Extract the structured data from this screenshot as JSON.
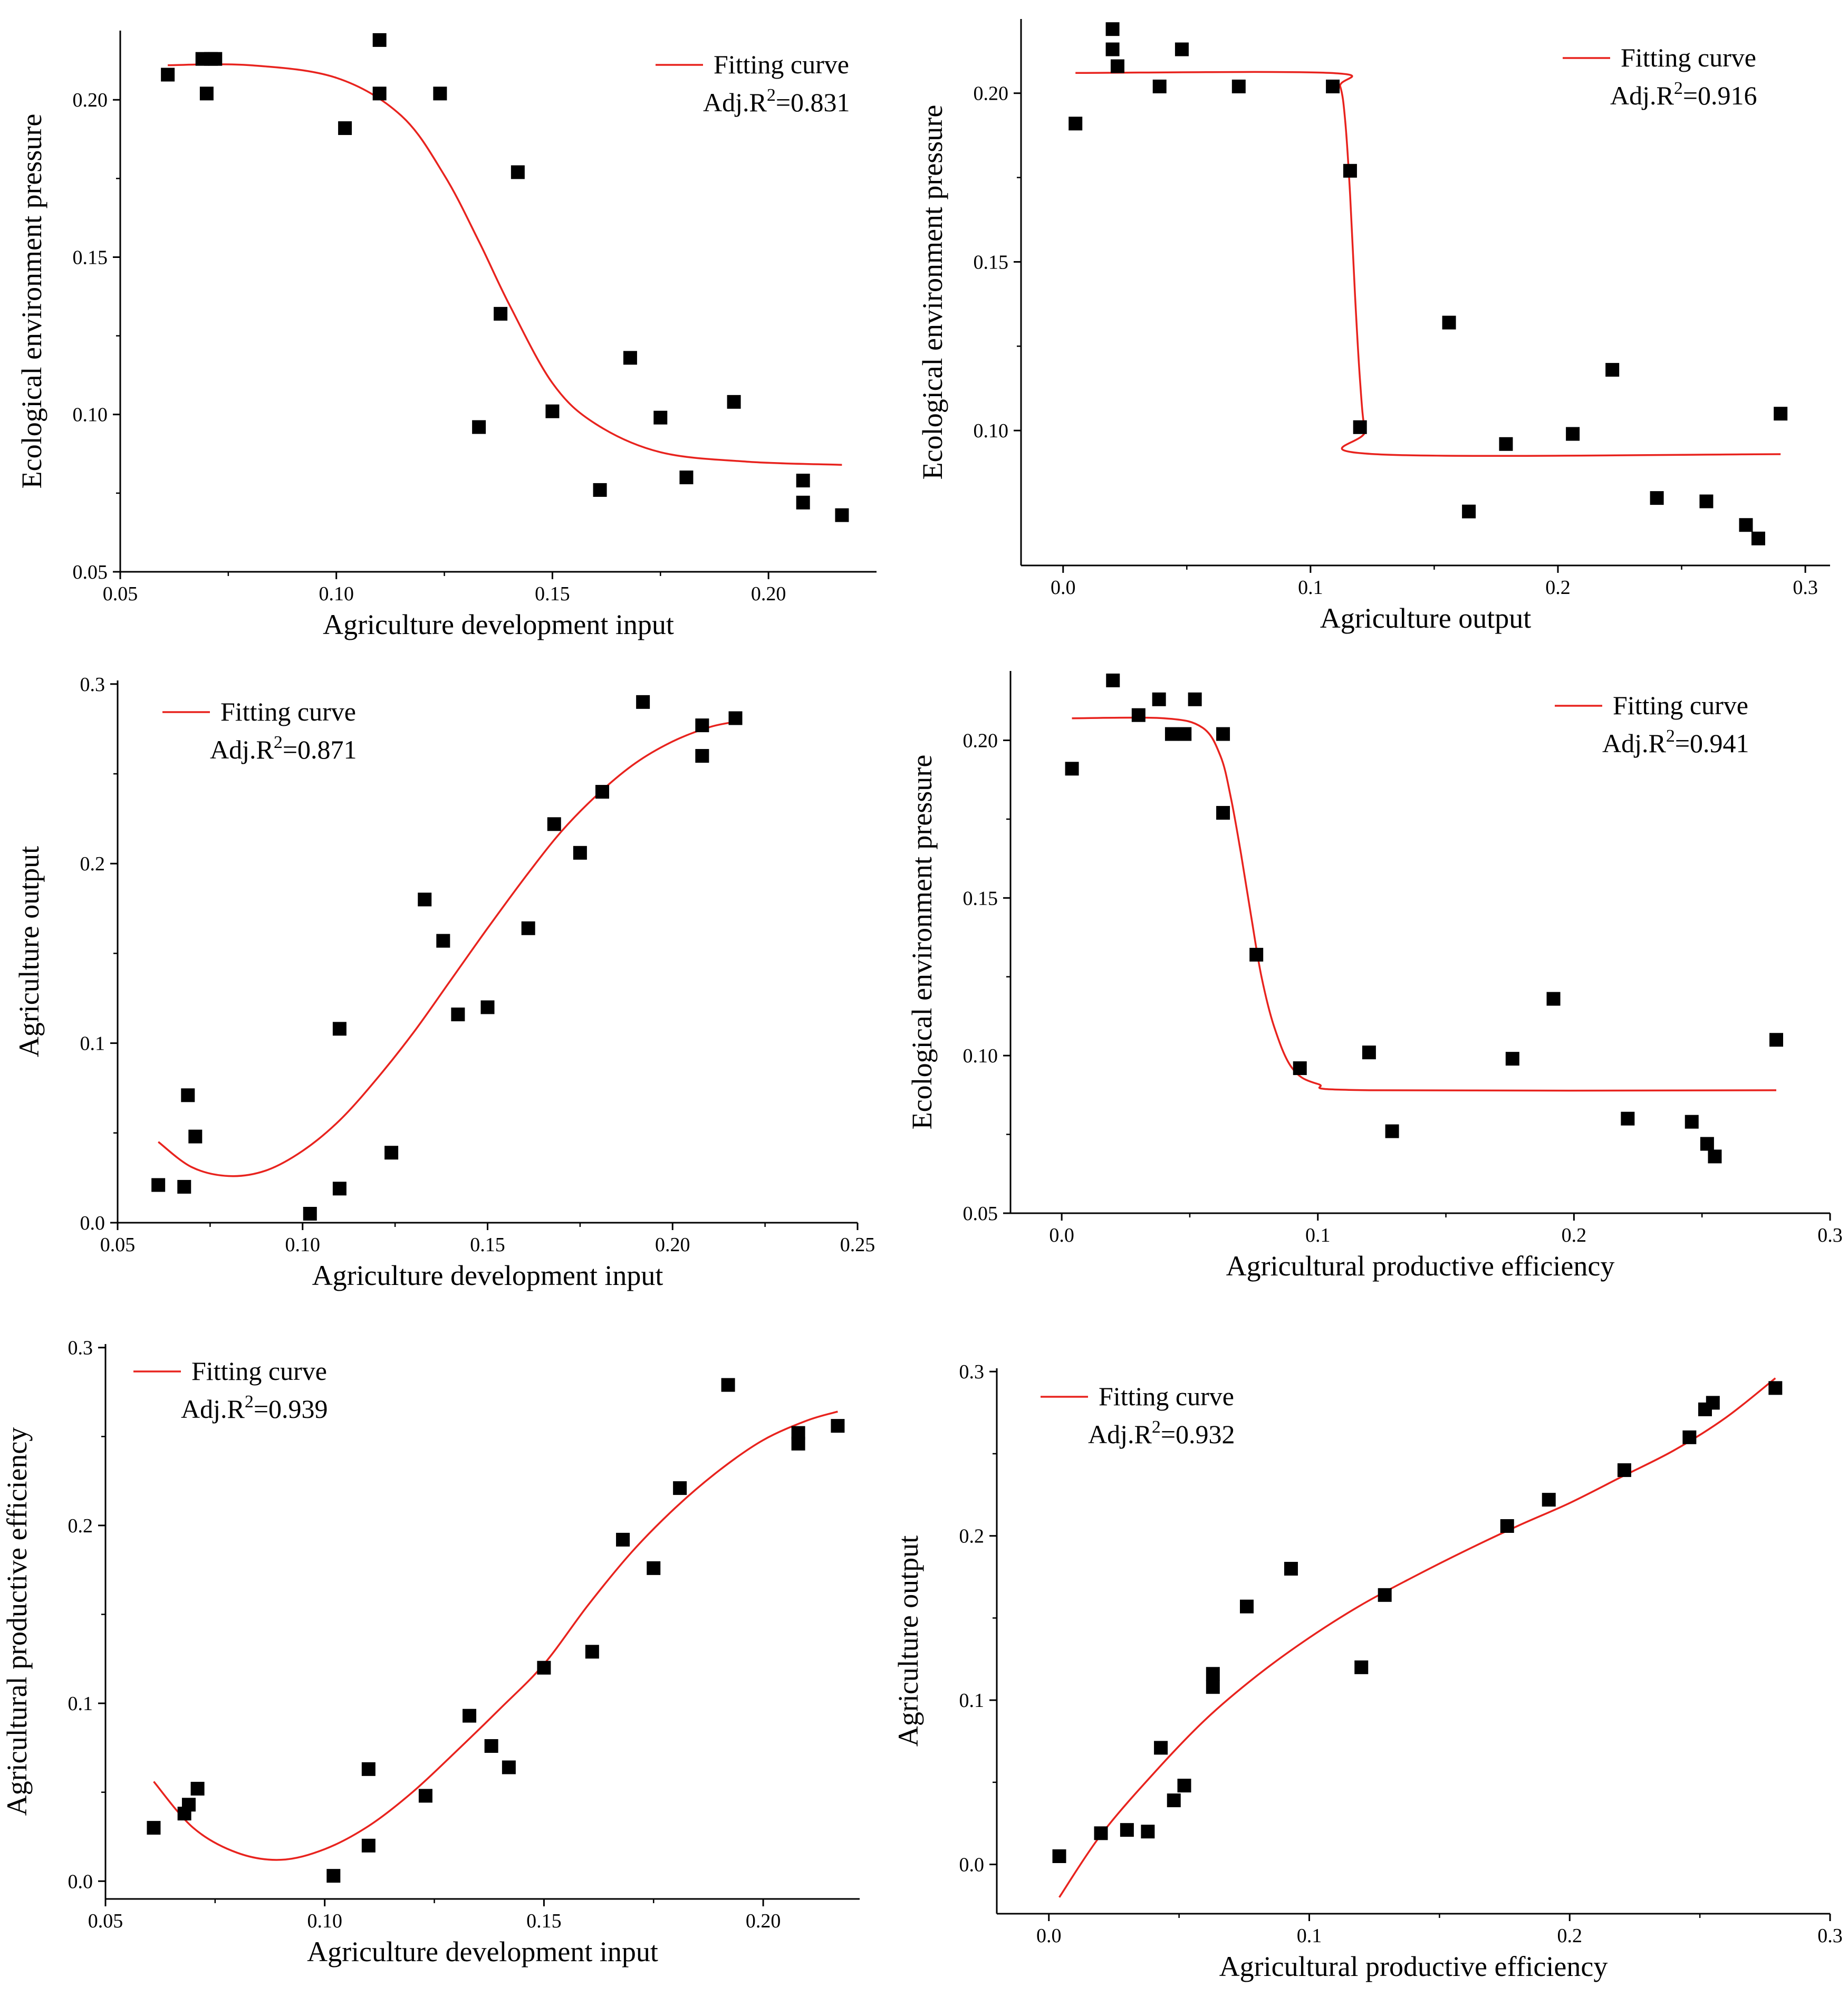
{
  "chart_data": [
    {
      "type": "scatter",
      "panel": "top-left",
      "xlabel": "Agriculture development input",
      "ylabel": "Ecological environment pressure",
      "xlim": [
        0.05,
        0.225
      ],
      "ylim": [
        0.05,
        0.222
      ],
      "xticks": [
        0.05,
        0.1,
        0.15,
        0.2
      ],
      "yticks": [
        0.05,
        0.1,
        0.15,
        0.2
      ],
      "xtick_labels": [
        "0.05",
        "0.10",
        "0.15",
        "0.20"
      ],
      "ytick_labels": [
        "0.05",
        "0.10",
        "0.15",
        "0.20"
      ],
      "legend": {
        "label": "Fitting curve",
        "r2_prefix": "Adj.R",
        "r2_sup": "2",
        "r2_value": "=0.831",
        "position": "top-right"
      },
      "series": [
        {
          "name": "points",
          "x": [
            0.061,
            0.069,
            0.07,
            0.071,
            0.072,
            0.102,
            0.11,
            0.11,
            0.124,
            0.133,
            0.138,
            0.142,
            0.15,
            0.161,
            0.168,
            0.175,
            0.181,
            0.192,
            0.208,
            0.208,
            0.217
          ],
          "y": [
            0.208,
            0.213,
            0.202,
            0.213,
            0.213,
            0.191,
            0.219,
            0.202,
            0.202,
            0.096,
            0.132,
            0.177,
            0.101,
            0.076,
            0.118,
            0.099,
            0.08,
            0.104,
            0.079,
            0.072,
            0.068
          ]
        },
        {
          "name": "Fitting curve",
          "x": [
            0.061,
            0.08,
            0.1,
            0.115,
            0.125,
            0.133,
            0.14,
            0.15,
            0.16,
            0.175,
            0.195,
            0.217
          ],
          "y": [
            0.211,
            0.211,
            0.207,
            0.195,
            0.176,
            0.155,
            0.135,
            0.11,
            0.097,
            0.088,
            0.085,
            0.084
          ]
        }
      ]
    },
    {
      "type": "scatter",
      "panel": "top-right",
      "xlabel": "Agriculture output",
      "ylabel": "Ecological environment pressure",
      "xlim": [
        -0.017,
        0.31
      ],
      "ylim": [
        0.06,
        0.222
      ],
      "xticks": [
        0.0,
        0.1,
        0.2,
        0.3
      ],
      "yticks": [
        0.1,
        0.15,
        0.2
      ],
      "xtick_labels": [
        "0.0",
        "0.1",
        "0.2",
        "0.3"
      ],
      "ytick_labels": [
        "0.10",
        "0.15",
        "0.20"
      ],
      "legend": {
        "label": "Fitting curve",
        "r2_prefix": "Adj.R",
        "r2_sup": "2",
        "r2_value": "=0.916",
        "position": "top-right"
      },
      "series": [
        {
          "name": "points",
          "x": [
            0.005,
            0.02,
            0.02,
            0.022,
            0.039,
            0.048,
            0.071,
            0.109,
            0.116,
            0.12,
            0.156,
            0.164,
            0.179,
            0.206,
            0.222,
            0.24,
            0.26,
            0.276,
            0.281,
            0.29
          ],
          "y": [
            0.191,
            0.219,
            0.213,
            0.208,
            0.202,
            0.213,
            0.202,
            0.202,
            0.177,
            0.101,
            0.132,
            0.076,
            0.096,
            0.099,
            0.118,
            0.08,
            0.079,
            0.072,
            0.068,
            0.105
          ]
        },
        {
          "name": "Fitting curve",
          "x": [
            0.005,
            0.108,
            0.112,
            0.114,
            0.116,
            0.118,
            0.12,
            0.122,
            0.126,
            0.29
          ],
          "y": [
            0.206,
            0.206,
            0.202,
            0.192,
            0.17,
            0.14,
            0.115,
            0.1,
            0.093,
            0.093
          ]
        }
      ]
    },
    {
      "type": "scatter",
      "panel": "middle-left",
      "xlabel": "Agriculture development input",
      "ylabel": "Agriculture output",
      "xlim": [
        0.05,
        0.25
      ],
      "ylim": [
        0.0,
        0.302
      ],
      "xticks": [
        0.05,
        0.1,
        0.15,
        0.2,
        0.25
      ],
      "yticks": [
        0.0,
        0.1,
        0.2,
        0.3
      ],
      "xtick_labels": [
        "0.05",
        "0.10",
        "0.15",
        "0.20",
        "0.25"
      ],
      "ytick_labels": [
        "0.0",
        "0.1",
        "0.2",
        "0.3"
      ],
      "legend": {
        "label": "Fitting curve",
        "r2_prefix": "Adj.R",
        "r2_sup": "2",
        "r2_value": "=0.871",
        "position": "top-left"
      },
      "series": [
        {
          "name": "points",
          "x": [
            0.061,
            0.068,
            0.069,
            0.071,
            0.102,
            0.11,
            0.11,
            0.124,
            0.133,
            0.138,
            0.142,
            0.15,
            0.161,
            0.168,
            0.175,
            0.181,
            0.192,
            0.208,
            0.208,
            0.217
          ],
          "y": [
            0.021,
            0.02,
            0.071,
            0.048,
            0.005,
            0.019,
            0.108,
            0.039,
            0.18,
            0.157,
            0.116,
            0.12,
            0.164,
            0.222,
            0.206,
            0.24,
            0.29,
            0.277,
            0.26,
            0.281
          ]
        },
        {
          "name": "Fitting curve",
          "x": [
            0.061,
            0.07,
            0.08,
            0.09,
            0.1,
            0.11,
            0.12,
            0.13,
            0.14,
            0.15,
            0.16,
            0.17,
            0.18,
            0.19,
            0.2,
            0.21,
            0.217
          ],
          "y": [
            0.045,
            0.031,
            0.026,
            0.029,
            0.04,
            0.057,
            0.08,
            0.106,
            0.135,
            0.164,
            0.192,
            0.218,
            0.239,
            0.256,
            0.268,
            0.276,
            0.279
          ]
        }
      ]
    },
    {
      "type": "scatter",
      "panel": "middle-right",
      "xlabel": "Agricultural productive efficiency",
      "ylabel": "Ecological environment pressure",
      "xlim": [
        -0.02,
        0.3
      ],
      "ylim": [
        0.05,
        0.222
      ],
      "xticks": [
        0.0,
        0.1,
        0.2,
        0.3
      ],
      "yticks": [
        0.05,
        0.1,
        0.15,
        0.2
      ],
      "xtick_labels": [
        "0.0",
        "0.1",
        "0.2",
        "0.3"
      ],
      "ytick_labels": [
        "0.05",
        "0.10",
        "0.15",
        "0.20"
      ],
      "legend": {
        "label": "Fitting curve",
        "r2_prefix": "Adj.R",
        "r2_sup": "2",
        "r2_value": "=0.941",
        "position": "top-right"
      },
      "series": [
        {
          "name": "points",
          "x": [
            0.004,
            0.02,
            0.03,
            0.038,
            0.043,
            0.048,
            0.052,
            0.063,
            0.063,
            0.076,
            0.093,
            0.12,
            0.129,
            0.176,
            0.192,
            0.221,
            0.246,
            0.252,
            0.255,
            0.279
          ],
          "y": [
            0.191,
            0.219,
            0.208,
            0.213,
            0.202,
            0.202,
            0.213,
            0.202,
            0.177,
            0.132,
            0.096,
            0.101,
            0.076,
            0.099,
            0.118,
            0.08,
            0.079,
            0.072,
            0.068,
            0.105
          ]
        },
        {
          "name": "Fitting curve",
          "x": [
            0.004,
            0.04,
            0.055,
            0.062,
            0.066,
            0.07,
            0.074,
            0.078,
            0.083,
            0.09,
            0.1,
            0.12,
            0.279
          ],
          "y": [
            0.207,
            0.207,
            0.204,
            0.195,
            0.182,
            0.164,
            0.144,
            0.125,
            0.109,
            0.096,
            0.091,
            0.089,
            0.089
          ]
        }
      ]
    },
    {
      "type": "scatter",
      "panel": "bottom-left",
      "xlabel": "Agriculture development input",
      "ylabel": "Agricultural productive efficiency",
      "xlim": [
        0.05,
        0.222
      ],
      "ylim": [
        -0.01,
        0.302
      ],
      "xticks": [
        0.05,
        0.1,
        0.15,
        0.2
      ],
      "yticks": [
        0.0,
        0.1,
        0.2,
        0.3
      ],
      "xtick_labels": [
        "0.05",
        "0.10",
        "0.15",
        "0.20"
      ],
      "ytick_labels": [
        "0.0",
        "0.1",
        "0.2",
        "0.3"
      ],
      "legend": {
        "label": "Fitting curve",
        "r2_prefix": "Adj.R",
        "r2_sup": "2",
        "r2_value": "=0.939",
        "position": "top-left"
      },
      "series": [
        {
          "name": "points",
          "x": [
            0.061,
            0.068,
            0.069,
            0.071,
            0.102,
            0.11,
            0.11,
            0.123,
            0.133,
            0.138,
            0.142,
            0.15,
            0.161,
            0.168,
            0.175,
            0.181,
            0.192,
            0.208,
            0.208,
            0.217
          ],
          "y": [
            0.03,
            0.038,
            0.043,
            0.052,
            0.003,
            0.02,
            0.063,
            0.048,
            0.093,
            0.076,
            0.064,
            0.12,
            0.129,
            0.192,
            0.176,
            0.221,
            0.279,
            0.246,
            0.252,
            0.256
          ]
        },
        {
          "name": "Fitting curve",
          "x": [
            0.061,
            0.07,
            0.08,
            0.09,
            0.1,
            0.11,
            0.12,
            0.13,
            0.14,
            0.15,
            0.16,
            0.17,
            0.18,
            0.19,
            0.2,
            0.21,
            0.217
          ],
          "y": [
            0.056,
            0.03,
            0.016,
            0.012,
            0.018,
            0.031,
            0.05,
            0.073,
            0.097,
            0.122,
            0.155,
            0.185,
            0.21,
            0.231,
            0.248,
            0.259,
            0.264
          ]
        }
      ]
    },
    {
      "type": "scatter",
      "panel": "bottom-right",
      "xlabel": "Agricultural productive efficiency",
      "ylabel": "Agriculture output",
      "xlim": [
        -0.02,
        0.3
      ],
      "ylim": [
        -0.03,
        0.302
      ],
      "xticks": [
        0.0,
        0.1,
        0.2,
        0.3
      ],
      "yticks": [
        0.0,
        0.1,
        0.2,
        0.3
      ],
      "xtick_labels": [
        "0.0",
        "0.1",
        "0.2",
        "0.3"
      ],
      "ytick_labels": [
        "0.0",
        "0.1",
        "0.2",
        "0.3"
      ],
      "legend": {
        "label": "Fitting curve",
        "r2_prefix": "Adj.R",
        "r2_sup": "2",
        "r2_value": "=0.932",
        "position": "top-left"
      },
      "series": [
        {
          "name": "points",
          "x": [
            0.004,
            0.02,
            0.03,
            0.038,
            0.043,
            0.048,
            0.052,
            0.063,
            0.063,
            0.076,
            0.093,
            0.12,
            0.129,
            0.176,
            0.192,
            0.221,
            0.246,
            0.252,
            0.255,
            0.279
          ],
          "y": [
            0.005,
            0.019,
            0.021,
            0.02,
            0.071,
            0.039,
            0.048,
            0.108,
            0.116,
            0.157,
            0.18,
            0.12,
            0.164,
            0.206,
            0.222,
            0.24,
            0.26,
            0.277,
            0.281,
            0.29
          ]
        },
        {
          "name": "Fitting curve",
          "x": [
            0.004,
            0.02,
            0.04,
            0.06,
            0.08,
            0.1,
            0.12,
            0.14,
            0.16,
            0.18,
            0.2,
            0.22,
            0.24,
            0.26,
            0.279
          ],
          "y": [
            -0.02,
            0.018,
            0.055,
            0.088,
            0.115,
            0.138,
            0.158,
            0.175,
            0.191,
            0.206,
            0.22,
            0.236,
            0.252,
            0.272,
            0.296
          ]
        }
      ]
    }
  ]
}
